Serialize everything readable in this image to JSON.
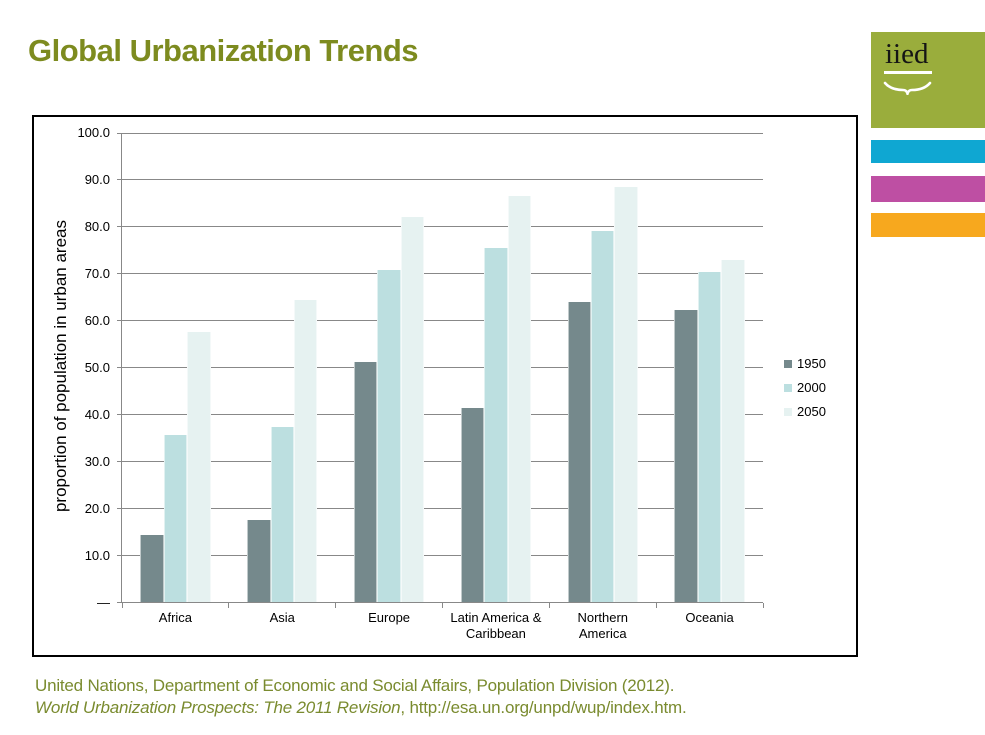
{
  "slide": {
    "title": "Global Urbanization Trends",
    "footer_line1": "United Nations, Department of Economic and Social Affairs, Population Division (2012).",
    "footer_line2_italic": "World Urbanization Prospects: The 2011 Revision",
    "footer_line2_rest": ", http://esa.un.org/unpd/wup/index.htm."
  },
  "logo": {
    "text": "iied"
  },
  "colors": {
    "title": "#7d8b1f",
    "footer": "#7a8b2f",
    "logo_green": "#9aad3c",
    "logo_cyan": "#0fa7d2",
    "logo_pink": "#be4fa3",
    "logo_orange": "#f7a81e",
    "gridline": "#888888",
    "chart_border": "#000000",
    "series_1950": "#75898c",
    "series_2000": "#bcdfe0",
    "series_2050": "#e6f2f1"
  },
  "chart_data": {
    "type": "bar",
    "title": "",
    "xlabel": "",
    "ylabel": "proportion of population in urban areas",
    "ylim": [
      0,
      100
    ],
    "ytick_step": 10,
    "ytick_labels": [
      "100.0",
      "90.0",
      "80.0",
      "70.0",
      "60.0",
      "50.0",
      "40.0",
      "30.0",
      "20.0",
      "10.0",
      "—"
    ],
    "grid": true,
    "legend_position": "right",
    "categories": [
      "Africa",
      "Asia",
      "Europe",
      "Latin America &\nCaribbean",
      "Northern\nAmerica",
      "Oceania"
    ],
    "series": [
      {
        "name": "1950",
        "color": "#75898c",
        "values": [
          14.4,
          17.5,
          51.3,
          41.4,
          63.9,
          62.4
        ]
      },
      {
        "name": "2000",
        "color": "#bcdfe0",
        "values": [
          35.6,
          37.4,
          70.8,
          75.5,
          79.1,
          70.4
        ]
      },
      {
        "name": "2050",
        "color": "#e6f2f1",
        "values": [
          57.7,
          64.4,
          82.2,
          86.6,
          88.6,
          73.0
        ]
      }
    ]
  }
}
